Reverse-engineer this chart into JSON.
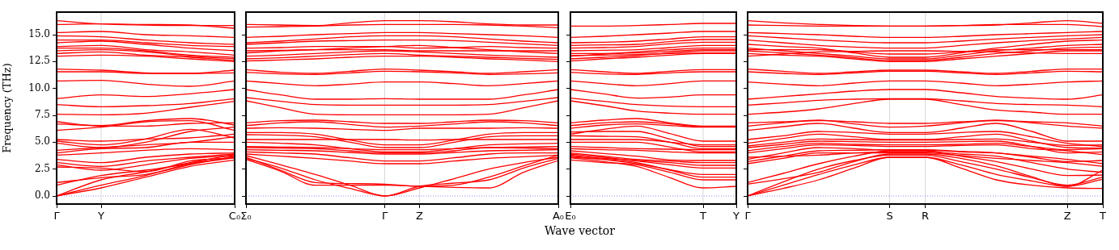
{
  "chart_data": [
    {
      "type": "line",
      "ylabel": "Frequency (THz)",
      "ylim": [
        -0.75,
        17.1
      ],
      "marker": "none",
      "categories": [
        "Γ",
        "Y",
        null,
        null,
        "C₀"
      ],
      "yticks": [
        {
          "value": 0,
          "label": "0.0"
        },
        {
          "value": 2.5,
          "label": "2.5"
        },
        {
          "value": 5,
          "label": "5.0"
        },
        {
          "value": 7.5,
          "label": "7.5"
        },
        {
          "value": 10,
          "label": "10.0"
        },
        {
          "value": 12.5,
          "label": "12.5"
        },
        {
          "value": 15,
          "label": "15.0"
        }
      ],
      "ref_lines": [
        {
          "axis": "y",
          "value": 0,
          "color": "#8c8cf0",
          "line_style": "dotted"
        },
        {
          "axis": "x",
          "value": "Y",
          "color": "#d8d8d8",
          "line_style": "solid"
        }
      ],
      "series": [
        {
          "color": "#ff0000",
          "values": [
            16.3,
            16.0,
            15.9,
            15.85,
            15.85
          ]
        },
        {
          "color": "#ff0000",
          "values": [
            15.95,
            16.0,
            15.95,
            15.9,
            15.6
          ]
        },
        {
          "color": "#ff0000",
          "values": [
            15.2,
            15.3,
            15.0,
            14.9,
            14.75
          ]
        },
        {
          "color": "#ff0000",
          "values": [
            14.9,
            14.8,
            14.5,
            14.25,
            14.1
          ]
        },
        {
          "color": "#ff0000",
          "values": [
            14.5,
            14.5,
            14.25,
            14.0,
            13.9
          ]
        },
        {
          "color": "#ff0000",
          "values": [
            14.25,
            14.4,
            14.1,
            13.75,
            13.5
          ]
        },
        {
          "color": "#ff0000",
          "values": [
            13.9,
            14.0,
            13.6,
            13.4,
            13.1
          ]
        },
        {
          "color": "#ff0000",
          "values": [
            13.75,
            13.75,
            13.5,
            13.1,
            12.9
          ]
        },
        {
          "color": "#ff0000",
          "values": [
            13.5,
            13.6,
            13.4,
            13.0,
            12.75
          ]
        },
        {
          "color": "#ff0000",
          "values": [
            13.25,
            13.4,
            13.1,
            12.9,
            12.6
          ]
        },
        {
          "color": "#ff0000",
          "values": [
            13.0,
            13.1,
            13.0,
            12.75,
            12.5
          ]
        },
        {
          "color": "#ff0000",
          "values": [
            11.8,
            11.7,
            11.45,
            11.4,
            11.7
          ]
        },
        {
          "color": "#ff0000",
          "values": [
            11.55,
            11.55,
            11.4,
            11.4,
            11.45
          ]
        },
        {
          "color": "#ff0000",
          "values": [
            10.7,
            10.75,
            10.4,
            10.2,
            10.7
          ]
        },
        {
          "color": "#ff0000",
          "values": [
            9.05,
            9.4,
            9.25,
            9.5,
            9.9
          ]
        },
        {
          "color": "#ff0000",
          "values": [
            8.5,
            8.3,
            8.4,
            8.6,
            9.05
          ]
        },
        {
          "color": "#ff0000",
          "values": [
            7.6,
            7.55,
            7.7,
            8.25,
            8.8
          ]
        },
        {
          "color": "#ff0000",
          "values": [
            6.9,
            6.5,
            6.5,
            6.75,
            6.8
          ]
        },
        {
          "color": "#ff0000",
          "values": [
            6.7,
            6.55,
            7.0,
            7.2,
            6.6
          ]
        },
        {
          "color": "#ff0000",
          "values": [
            6.1,
            6.4,
            6.9,
            7.0,
            6.1
          ]
        },
        {
          "color": "#ff0000",
          "values": [
            5.25,
            5.1,
            5.3,
            5.4,
            5.75
          ]
        },
        {
          "color": "#ff0000",
          "values": [
            5.1,
            4.75,
            5.3,
            6.2,
            5.4
          ]
        },
        {
          "color": "#ff0000",
          "values": [
            4.9,
            4.5,
            5.0,
            6.0,
            6.4
          ]
        },
        {
          "color": "#ff0000",
          "values": [
            4.25,
            4.5,
            4.75,
            5.0,
            5.5
          ]
        },
        {
          "color": "#ff0000",
          "values": [
            4.0,
            4.4,
            4.5,
            5.0,
            5.0
          ]
        },
        {
          "color": "#ff0000",
          "values": [
            3.8,
            4.0,
            4.25,
            4.4,
            4.3
          ]
        },
        {
          "color": "#ff0000",
          "values": [
            3.4,
            3.1,
            3.6,
            3.9,
            4.0
          ]
        },
        {
          "color": "#ff0000",
          "values": [
            3.1,
            2.75,
            3.25,
            3.6,
            3.9
          ]
        },
        {
          "color": "#ff0000",
          "values": [
            2.9,
            2.4,
            2.9,
            3.5,
            3.75
          ]
        },
        {
          "color": "#ff0000",
          "values": [
            2.7,
            2.6,
            2.25,
            3.25,
            3.55
          ]
        },
        {
          "color": "#ff0000",
          "values": [
            0,
            1.0,
            1.9,
            3.0,
            3.6
          ]
        },
        {
          "color": "#ff0000",
          "values": [
            0,
            1.5,
            2.25,
            3.1,
            3.85
          ]
        },
        {
          "color": "#ff0000",
          "values": [
            0,
            0.75,
            1.75,
            2.75,
            3.35
          ]
        },
        {
          "color": "#ff0000",
          "values": [
            1.0,
            1.9,
            2.4,
            3.0,
            3.55
          ]
        },
        {
          "color": "#ff0000",
          "values": [
            1.25,
            1.7,
            2.0,
            2.9,
            3.7
          ]
        }
      ]
    },
    {
      "type": "line",
      "ylim": [
        -0.75,
        17.1
      ],
      "grid": "x",
      "marker": "none",
      "tick_labels": "x",
      "categories": [
        "Σ₀",
        null,
        null,
        null,
        "Γ",
        "Z",
        null,
        null,
        null,
        "A₀"
      ],
      "yticks": [
        {
          "value": 0,
          "label": null
        },
        {
          "value": 2.5,
          "label": null
        },
        {
          "value": 5,
          "label": null
        },
        {
          "value": 7.5,
          "label": null
        },
        {
          "value": 10,
          "label": null
        },
        {
          "value": 12.5,
          "label": null
        },
        {
          "value": 15,
          "label": null
        }
      ],
      "ref_lines": [
        {
          "axis": "y",
          "value": 0,
          "color": "#8c8cf0",
          "line_style": "dotted"
        }
      ],
      "series": [
        {
          "color": "#ff0000",
          "values": [
            15.95,
            15.9,
            15.85,
            16.1,
            16.3,
            16.3,
            16.2,
            16.0,
            15.9,
            15.9
          ]
        },
        {
          "color": "#ff0000",
          "values": [
            15.7,
            15.75,
            15.8,
            15.9,
            15.95,
            15.95,
            15.95,
            15.9,
            15.8,
            15.65
          ]
        },
        {
          "color": "#ff0000",
          "values": [
            14.75,
            14.85,
            15.0,
            15.1,
            15.2,
            15.2,
            15.1,
            15.0,
            14.9,
            14.75
          ]
        },
        {
          "color": "#ff0000",
          "values": [
            14.25,
            14.4,
            14.6,
            14.8,
            14.9,
            14.9,
            14.8,
            14.6,
            14.4,
            14.25
          ]
        },
        {
          "color": "#ff0000",
          "values": [
            14.1,
            14.25,
            14.4,
            14.45,
            14.5,
            14.5,
            14.45,
            14.3,
            14.15,
            14.0
          ]
        },
        {
          "color": "#ff0000",
          "values": [
            13.75,
            13.8,
            13.9,
            13.9,
            13.9,
            13.75,
            13.8,
            13.9,
            13.8,
            13.75
          ]
        },
        {
          "color": "#ff0000",
          "values": [
            13.5,
            13.55,
            13.6,
            13.6,
            13.6,
            13.5,
            13.5,
            13.5,
            13.5,
            13.5
          ]
        },
        {
          "color": "#ff0000",
          "values": [
            13.0,
            13.1,
            13.25,
            13.4,
            13.5,
            13.4,
            13.25,
            13.1,
            13.0,
            12.9
          ]
        },
        {
          "color": "#ff0000",
          "values": [
            12.75,
            12.85,
            13.0,
            13.15,
            13.25,
            13.1,
            13.0,
            12.9,
            12.8,
            12.7
          ]
        },
        {
          "color": "#ff0000",
          "values": [
            12.55,
            12.65,
            12.75,
            12.9,
            13.0,
            13.0,
            12.9,
            12.75,
            12.65,
            12.5
          ]
        },
        {
          "color": "#ff0000",
          "values": [
            13.3,
            13.5,
            13.6,
            13.75,
            13.9,
            14.0,
            13.8,
            13.6,
            13.4,
            13.25
          ]
        },
        {
          "color": "#ff0000",
          "values": [
            11.75,
            11.5,
            11.4,
            11.6,
            11.8,
            11.7,
            11.55,
            11.4,
            11.55,
            11.75
          ]
        },
        {
          "color": "#ff0000",
          "values": [
            11.5,
            11.35,
            11.3,
            11.45,
            11.6,
            11.55,
            11.45,
            11.3,
            11.35,
            11.45
          ]
        },
        {
          "color": "#ff0000",
          "values": [
            10.7,
            10.45,
            10.25,
            10.4,
            10.6,
            10.6,
            10.45,
            10.25,
            10.45,
            10.7
          ]
        },
        {
          "color": "#ff0000",
          "values": [
            9.9,
            9.4,
            9.0,
            9.0,
            9.05,
            9.0,
            9.0,
            9.0,
            9.4,
            9.9
          ]
        },
        {
          "color": "#ff0000",
          "values": [
            9.15,
            8.8,
            8.5,
            8.45,
            8.45,
            8.45,
            8.45,
            8.5,
            8.8,
            9.15
          ]
        },
        {
          "color": "#ff0000",
          "values": [
            8.85,
            8.2,
            7.6,
            7.55,
            7.55,
            7.55,
            7.55,
            7.6,
            8.2,
            8.85
          ]
        },
        {
          "color": "#ff0000",
          "values": [
            6.8,
            7.0,
            7.05,
            6.9,
            6.75,
            6.75,
            6.9,
            7.05,
            7.0,
            6.8
          ]
        },
        {
          "color": "#ff0000",
          "values": [
            6.55,
            6.8,
            6.9,
            6.65,
            6.4,
            6.5,
            6.7,
            6.9,
            6.8,
            6.55
          ]
        },
        {
          "color": "#ff0000",
          "values": [
            6.3,
            6.35,
            6.3,
            6.2,
            6.1,
            6.3,
            6.3,
            6.3,
            6.35,
            6.3
          ]
        },
        {
          "color": "#ff0000",
          "values": [
            5.9,
            5.9,
            5.75,
            5.2,
            4.75,
            4.75,
            5.2,
            5.75,
            5.9,
            5.9
          ]
        },
        {
          "color": "#ff0000",
          "values": [
            5.7,
            5.65,
            5.5,
            5.0,
            4.5,
            4.5,
            5.0,
            5.5,
            5.6,
            5.6
          ]
        },
        {
          "color": "#ff0000",
          "values": [
            5.25,
            5.25,
            5.25,
            5.25,
            5.25,
            5.2,
            5.25,
            5.25,
            5.25,
            5.25
          ]
        },
        {
          "color": "#ff0000",
          "values": [
            5.0,
            4.9,
            4.75,
            4.4,
            4.1,
            4.1,
            4.4,
            4.75,
            4.85,
            4.9
          ]
        },
        {
          "color": "#ff0000",
          "values": [
            4.5,
            4.45,
            4.4,
            4.2,
            4.0,
            4.0,
            4.2,
            4.5,
            4.45,
            4.4
          ]
        },
        {
          "color": "#ff0000",
          "values": [
            4.1,
            4.0,
            3.9,
            3.55,
            3.25,
            3.25,
            3.55,
            3.9,
            4.0,
            4.0
          ]
        },
        {
          "color": "#ff0000",
          "values": [
            3.9,
            3.7,
            3.5,
            3.25,
            3.0,
            3.0,
            3.25,
            3.5,
            3.65,
            3.8
          ]
        },
        {
          "color": "#ff0000",
          "values": [
            3.75,
            2.9,
            2.0,
            1.0,
            0,
            0.75,
            1.6,
            2.5,
            3.1,
            3.6
          ]
        },
        {
          "color": "#ff0000",
          "values": [
            3.5,
            2.6,
            1.5,
            0.7,
            0,
            0.9,
            1.2,
            1.5,
            2.6,
            3.5
          ]
        },
        {
          "color": "#ff0000",
          "values": [
            3.6,
            2.4,
            1.25,
            1.15,
            1.1,
            0.9,
            1.0,
            1.75,
            2.8,
            3.8
          ]
        },
        {
          "color": "#ff0000",
          "values": [
            3.4,
            2.3,
            1.0,
            1.0,
            1.0,
            0.9,
            0.8,
            0.75,
            2.2,
            3.3
          ]
        },
        {
          "color": "#ff0000",
          "values": [
            4.3,
            4.25,
            4.2,
            4.05,
            3.9,
            3.9,
            4.05,
            4.2,
            4.25,
            4.3
          ]
        },
        {
          "color": "#ff0000",
          "values": [
            4.6,
            4.55,
            4.5,
            4.4,
            4.3,
            4.3,
            4.4,
            4.5,
            4.55,
            4.6
          ]
        }
      ]
    },
    {
      "type": "line",
      "xlabel": "Wave vector",
      "ylim": [
        -0.75,
        17.1
      ],
      "marker": "none",
      "tick_labels": "x",
      "categories": [
        "E₀",
        null,
        null,
        null,
        "T",
        "Y"
      ],
      "yticks": [
        {
          "value": 0,
          "label": null
        },
        {
          "value": 2.5,
          "label": null
        },
        {
          "value": 5,
          "label": null
        },
        {
          "value": 7.5,
          "label": null
        },
        {
          "value": 10,
          "label": null
        },
        {
          "value": 12.5,
          "label": null
        },
        {
          "value": 15,
          "label": null
        }
      ],
      "ref_lines": [
        {
          "axis": "y",
          "value": 0,
          "color": "#8c8cf0",
          "line_style": "dotted"
        },
        {
          "axis": "x",
          "value": "T",
          "color": "#d8d8d8",
          "line_style": "solid"
        }
      ],
      "series": [
        {
          "color": "#ff0000",
          "values": [
            15.8,
            15.8,
            15.85,
            15.95,
            16.05,
            16.05
          ]
        },
        {
          "color": "#ff0000",
          "values": [
            14.75,
            14.85,
            15.0,
            15.15,
            15.3,
            15.3
          ]
        },
        {
          "color": "#ff0000",
          "values": [
            14.25,
            14.3,
            14.4,
            14.6,
            14.8,
            14.8
          ]
        },
        {
          "color": "#ff0000",
          "values": [
            14.0,
            14.05,
            14.1,
            14.35,
            14.55,
            14.55
          ]
        },
        {
          "color": "#ff0000",
          "values": [
            13.75,
            13.8,
            13.9,
            14.15,
            14.3,
            14.3
          ]
        },
        {
          "color": "#ff0000",
          "values": [
            13.5,
            13.55,
            13.6,
            13.8,
            14.0,
            14.0
          ]
        },
        {
          "color": "#ff0000",
          "values": [
            13.0,
            13.2,
            13.4,
            13.6,
            13.75,
            13.75
          ]
        },
        {
          "color": "#ff0000",
          "values": [
            12.75,
            12.9,
            13.05,
            13.3,
            13.5,
            13.5
          ]
        },
        {
          "color": "#ff0000",
          "values": [
            12.55,
            12.75,
            12.9,
            13.1,
            13.25,
            13.25
          ]
        },
        {
          "color": "#ff0000",
          "values": [
            13.25,
            13.25,
            13.3,
            13.45,
            13.6,
            13.6
          ]
        },
        {
          "color": "#ff0000",
          "values": [
            13.05,
            13.1,
            13.15,
            13.25,
            13.3,
            13.3
          ]
        },
        {
          "color": "#ff0000",
          "values": [
            11.75,
            11.55,
            11.4,
            11.6,
            11.75,
            11.75
          ]
        },
        {
          "color": "#ff0000",
          "values": [
            11.5,
            11.35,
            11.3,
            11.45,
            11.55,
            11.55
          ]
        },
        {
          "color": "#ff0000",
          "values": [
            10.7,
            10.45,
            10.25,
            10.45,
            10.7,
            10.7
          ]
        },
        {
          "color": "#ff0000",
          "values": [
            9.9,
            9.5,
            9.1,
            9.2,
            9.4,
            9.4
          ]
        },
        {
          "color": "#ff0000",
          "values": [
            9.1,
            8.8,
            8.5,
            8.35,
            8.3,
            8.3
          ]
        },
        {
          "color": "#ff0000",
          "values": [
            8.85,
            8.4,
            7.9,
            7.7,
            7.6,
            7.6
          ]
        },
        {
          "color": "#ff0000",
          "values": [
            6.8,
            7.05,
            7.2,
            6.8,
            6.5,
            6.5
          ]
        },
        {
          "color": "#ff0000",
          "values": [
            6.55,
            6.8,
            6.9,
            6.7,
            6.45,
            6.45
          ]
        },
        {
          "color": "#ff0000",
          "values": [
            6.3,
            6.6,
            6.7,
            6.55,
            6.4,
            6.4
          ]
        },
        {
          "color": "#ff0000",
          "values": [
            5.75,
            6.2,
            6.5,
            5.8,
            5.1,
            5.1
          ]
        },
        {
          "color": "#ff0000",
          "values": [
            5.95,
            6.0,
            6.0,
            5.3,
            4.6,
            4.6
          ]
        },
        {
          "color": "#ff0000",
          "values": [
            5.6,
            5.55,
            5.5,
            5.0,
            4.4,
            4.4
          ]
        },
        {
          "color": "#ff0000",
          "values": [
            5.25,
            5.25,
            5.25,
            5.0,
            4.75,
            4.75
          ]
        },
        {
          "color": "#ff0000",
          "values": [
            5.0,
            5.0,
            5.0,
            4.55,
            4.1,
            4.1
          ]
        },
        {
          "color": "#ff0000",
          "values": [
            4.4,
            4.3,
            4.25,
            4.1,
            4.0,
            4.0
          ]
        },
        {
          "color": "#ff0000",
          "values": [
            4.6,
            4.5,
            4.4,
            4.35,
            4.3,
            4.3
          ]
        },
        {
          "color": "#ff0000",
          "values": [
            4.0,
            3.7,
            3.4,
            3.25,
            3.1,
            3.1
          ]
        },
        {
          "color": "#ff0000",
          "values": [
            3.9,
            3.6,
            3.25,
            2.9,
            2.6,
            2.6
          ]
        },
        {
          "color": "#ff0000",
          "values": [
            3.6,
            3.4,
            3.1,
            2.4,
            1.75,
            1.75
          ]
        },
        {
          "color": "#ff0000",
          "values": [
            3.55,
            3.2,
            2.75,
            1.7,
            0.75,
            0.9
          ]
        },
        {
          "color": "#ff0000",
          "values": [
            3.8,
            3.4,
            3.0,
            2.45,
            2.0,
            2.0
          ]
        },
        {
          "color": "#ff0000",
          "values": [
            3.7,
            3.5,
            3.3,
            3.1,
            2.85,
            2.85
          ]
        },
        {
          "color": "#ff0000",
          "values": [
            3.35,
            3.1,
            2.9,
            2.2,
            1.5,
            1.5
          ]
        },
        {
          "color": "#ff0000",
          "values": [
            4.2,
            3.95,
            3.7,
            3.35,
            3.3,
            3.3
          ]
        }
      ]
    },
    {
      "type": "line",
      "ylim": [
        -0.75,
        17.1
      ],
      "grid": "x",
      "marker": "none",
      "tick_labels": "x",
      "categories": [
        "Γ",
        null,
        null,
        null,
        "S",
        "R",
        null,
        null,
        null,
        "Z",
        "T"
      ],
      "yticks": [
        {
          "value": 0,
          "label": null
        },
        {
          "value": 2.5,
          "label": null
        },
        {
          "value": 5,
          "label": null
        },
        {
          "value": 7.5,
          "label": null
        },
        {
          "value": 10,
          "label": null
        },
        {
          "value": 12.5,
          "label": null
        },
        {
          "value": 15,
          "label": null
        }
      ],
      "ref_lines": [
        {
          "axis": "y",
          "value": 0,
          "color": "#8c8cf0",
          "line_style": "dotted"
        }
      ],
      "series": [
        {
          "color": "#ff0000",
          "values": [
            16.3,
            16.1,
            15.95,
            15.85,
            15.8,
            15.8,
            15.85,
            15.9,
            16.1,
            16.3,
            16.05
          ]
        },
        {
          "color": "#ff0000",
          "values": [
            15.9,
            15.85,
            15.8,
            15.8,
            15.8,
            15.8,
            15.85,
            15.95,
            15.95,
            15.95,
            15.75
          ]
        },
        {
          "color": "#ff0000",
          "values": [
            15.2,
            15.1,
            15.0,
            14.85,
            14.75,
            14.75,
            14.85,
            15.0,
            15.1,
            15.2,
            15.3
          ]
        },
        {
          "color": "#ff0000",
          "values": [
            14.9,
            14.7,
            14.5,
            14.35,
            14.25,
            14.25,
            14.4,
            14.6,
            14.75,
            14.9,
            15.0
          ]
        },
        {
          "color": "#ff0000",
          "values": [
            14.5,
            14.25,
            14.0,
            13.85,
            13.75,
            13.75,
            14.0,
            14.25,
            14.45,
            14.6,
            14.75
          ]
        },
        {
          "color": "#ff0000",
          "values": [
            14.1,
            13.9,
            13.75,
            13.3,
            12.9,
            12.9,
            13.3,
            13.75,
            14.1,
            14.4,
            14.5
          ]
        },
        {
          "color": "#ff0000",
          "values": [
            13.75,
            13.5,
            13.25,
            13.0,
            12.75,
            12.75,
            13.1,
            13.5,
            13.75,
            14.0,
            14.1
          ]
        },
        {
          "color": "#ff0000",
          "values": [
            13.5,
            13.3,
            13.1,
            12.85,
            12.6,
            12.6,
            12.9,
            13.25,
            13.5,
            13.75,
            13.85
          ]
        },
        {
          "color": "#ff0000",
          "values": [
            13.25,
            13.1,
            13.0,
            12.75,
            12.5,
            12.5,
            12.75,
            13.0,
            13.25,
            13.5,
            13.5
          ]
        },
        {
          "color": "#ff0000",
          "values": [
            13.0,
            13.2,
            13.4,
            13.45,
            13.5,
            13.5,
            13.45,
            13.4,
            13.3,
            13.25,
            13.25
          ]
        },
        {
          "color": "#ff0000",
          "values": [
            13.6,
            13.6,
            13.6,
            13.4,
            13.2,
            13.2,
            13.4,
            13.6,
            13.6,
            13.6,
            13.6
          ]
        },
        {
          "color": "#ff0000",
          "values": [
            11.8,
            11.6,
            11.4,
            11.55,
            11.7,
            11.7,
            11.55,
            11.4,
            11.6,
            11.8,
            11.8
          ]
        },
        {
          "color": "#ff0000",
          "values": [
            11.55,
            11.4,
            11.3,
            11.45,
            11.6,
            11.6,
            11.45,
            11.3,
            11.45,
            11.6,
            11.55
          ]
        },
        {
          "color": "#ff0000",
          "values": [
            10.6,
            10.4,
            10.25,
            10.5,
            10.7,
            10.7,
            10.5,
            10.25,
            10.4,
            10.6,
            10.7
          ]
        },
        {
          "color": "#ff0000",
          "values": [
            9.0,
            9.25,
            9.5,
            9.75,
            9.9,
            9.9,
            9.6,
            9.25,
            9.1,
            9.0,
            9.4
          ]
        },
        {
          "color": "#ff0000",
          "values": [
            8.45,
            8.65,
            8.9,
            9.0,
            9.05,
            9.05,
            8.85,
            8.6,
            8.5,
            8.45,
            8.3
          ]
        },
        {
          "color": "#ff0000",
          "values": [
            7.6,
            7.8,
            8.1,
            8.6,
            9.0,
            9.0,
            8.5,
            8.0,
            7.8,
            7.6,
            7.6
          ]
        },
        {
          "color": "#ff0000",
          "values": [
            6.8,
            6.9,
            7.0,
            6.9,
            6.75,
            6.75,
            6.9,
            7.0,
            6.9,
            6.8,
            6.5
          ]
        },
        {
          "color": "#ff0000",
          "values": [
            6.5,
            6.8,
            7.05,
            6.7,
            6.4,
            6.5,
            6.8,
            7.05,
            6.8,
            6.5,
            6.3
          ]
        },
        {
          "color": "#ff0000",
          "values": [
            6.1,
            6.45,
            6.75,
            6.3,
            5.9,
            5.9,
            6.3,
            6.75,
            6.0,
            5.1,
            5.1
          ]
        },
        {
          "color": "#ff0000",
          "values": [
            5.25,
            5.6,
            6.0,
            5.9,
            5.75,
            5.75,
            5.9,
            6.0,
            5.5,
            4.9,
            4.6
          ]
        },
        {
          "color": "#ff0000",
          "values": [
            4.9,
            5.35,
            5.75,
            5.5,
            5.25,
            5.25,
            5.5,
            5.75,
            5.1,
            4.5,
            4.45
          ]
        },
        {
          "color": "#ff0000",
          "values": [
            4.5,
            4.8,
            5.1,
            5.05,
            5.0,
            5.0,
            5.05,
            5.1,
            4.6,
            4.0,
            4.1
          ]
        },
        {
          "color": "#ff0000",
          "values": [
            4.0,
            4.4,
            4.75,
            4.7,
            4.6,
            4.6,
            4.7,
            4.75,
            4.4,
            4.2,
            3.85
          ]
        },
        {
          "color": "#ff0000",
          "values": [
            3.4,
            4.0,
            4.5,
            4.4,
            4.25,
            4.25,
            4.1,
            4.0,
            3.7,
            3.4,
            3.0
          ]
        },
        {
          "color": "#ff0000",
          "values": [
            3.0,
            3.5,
            4.0,
            4.0,
            4.0,
            4.0,
            3.75,
            3.5,
            3.3,
            3.1,
            2.75
          ]
        },
        {
          "color": "#ff0000",
          "values": [
            0,
            1.3,
            2.5,
            3.3,
            3.8,
            3.8,
            3.2,
            2.5,
            1.7,
            1.0,
            1.75
          ]
        },
        {
          "color": "#ff0000",
          "values": [
            0,
            1.0,
            2.0,
            2.9,
            3.6,
            3.6,
            2.9,
            2.0,
            1.4,
            0.9,
            1.55
          ]
        },
        {
          "color": "#ff0000",
          "values": [
            0,
            0.7,
            1.5,
            2.6,
            3.6,
            3.6,
            2.6,
            1.5,
            1.0,
            0.75,
            0.7
          ]
        },
        {
          "color": "#ff0000",
          "values": [
            1.1,
            1.6,
            2.2,
            3.2,
            3.9,
            3.9,
            3.5,
            2.8,
            1.8,
            0.9,
            2.4
          ]
        },
        {
          "color": "#ff0000",
          "values": [
            3.2,
            3.7,
            4.2,
            4.25,
            4.3,
            4.3,
            4.15,
            4.0,
            3.6,
            3.2,
            3.3
          ]
        },
        {
          "color": "#ff0000",
          "values": [
            4.2,
            4.6,
            4.9,
            4.8,
            4.75,
            4.75,
            4.8,
            4.9,
            4.6,
            4.3,
            4.4
          ]
        },
        {
          "color": "#ff0000",
          "values": [
            3.6,
            3.7,
            3.8,
            4.0,
            4.1,
            4.1,
            3.9,
            3.7,
            3.1,
            2.5,
            2.2
          ]
        },
        {
          "color": "#ff0000",
          "values": [
            1.25,
            2.1,
            3.0,
            3.7,
            4.2,
            4.2,
            3.7,
            3.2,
            2.5,
            1.9,
            1.95
          ]
        },
        {
          "color": "#ff0000",
          "values": [
            4.65,
            5.0,
            5.3,
            5.25,
            5.2,
            5.2,
            5.25,
            5.3,
            5.0,
            4.7,
            4.75
          ]
        }
      ]
    }
  ]
}
